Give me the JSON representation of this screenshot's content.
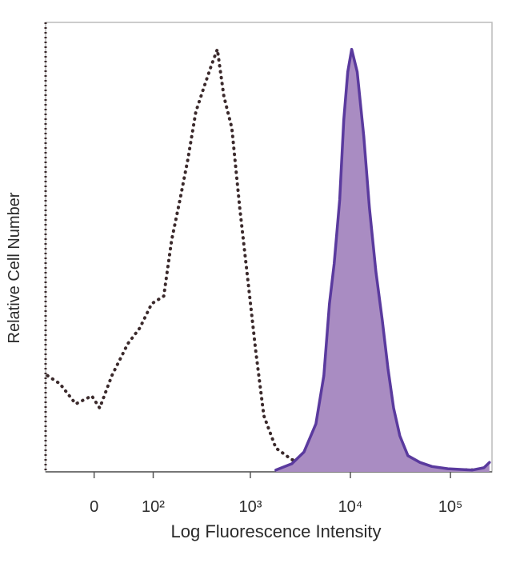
{
  "chart_data": {
    "type": "line",
    "xlabel": "Log Fluorescence Intensity",
    "ylabel": "Relative Cell Number",
    "xscale": "biexponential",
    "xlim": [
      -75,
      260000
    ],
    "ylim": [
      0,
      100
    ],
    "xticks": [
      0,
      {
        "value": 100,
        "label": "10²"
      },
      {
        "value": 1000,
        "label": "10³"
      },
      {
        "value": 10000,
        "label": "10⁴"
      },
      {
        "value": 100000,
        "label": "10⁵"
      }
    ],
    "series": [
      {
        "color": "#3b2a2c",
        "line_style": "dotted",
        "x": [
          -71,
          -48,
          -24,
          -3,
          7,
          23,
          47,
          69,
          96,
          131,
          159,
          194,
          234,
          283,
          340,
          410,
          467,
          542,
          652,
          784,
          943,
          1134,
          1364,
          1797,
          2600,
          4120,
          7150,
          12400,
          31200,
          78400,
          236000
        ],
        "values": [
          21.4,
          19.6,
          15.1,
          16.9,
          14.2,
          21.4,
          28.5,
          32,
          37.4,
          39.1,
          51.6,
          60.5,
          69.4,
          80.1,
          85.4,
          90.7,
          94,
          83.6,
          76.5,
          58.7,
          42.7,
          26.7,
          12.5,
          5.3,
          2.7,
          2.1,
          1.8,
          1.4,
          0.9,
          0.5,
          0.4
        ]
      },
      {
        "color": "#5a3a9e",
        "fill": "#a98cc2",
        "line_style": "solid",
        "x": [
          1797,
          2600,
          3430,
          4520,
          5430,
          6180,
          6880,
          7820,
          8580,
          9410,
          10300,
          11700,
          13600,
          15500,
          18000,
          20800,
          23700,
          27000,
          31200,
          37600,
          49500,
          65200,
          94200,
          164000,
          216000,
          245000
        ],
        "values": [
          0.4,
          1.8,
          4.4,
          10.7,
          21.4,
          37.4,
          46.3,
          60.5,
          78.3,
          89,
          94,
          89,
          74.7,
          58.7,
          44.5,
          33.8,
          23.1,
          14.2,
          8,
          3.6,
          2.1,
          1.2,
          0.7,
          0.4,
          0.9,
          2.1
        ]
      }
    ]
  }
}
